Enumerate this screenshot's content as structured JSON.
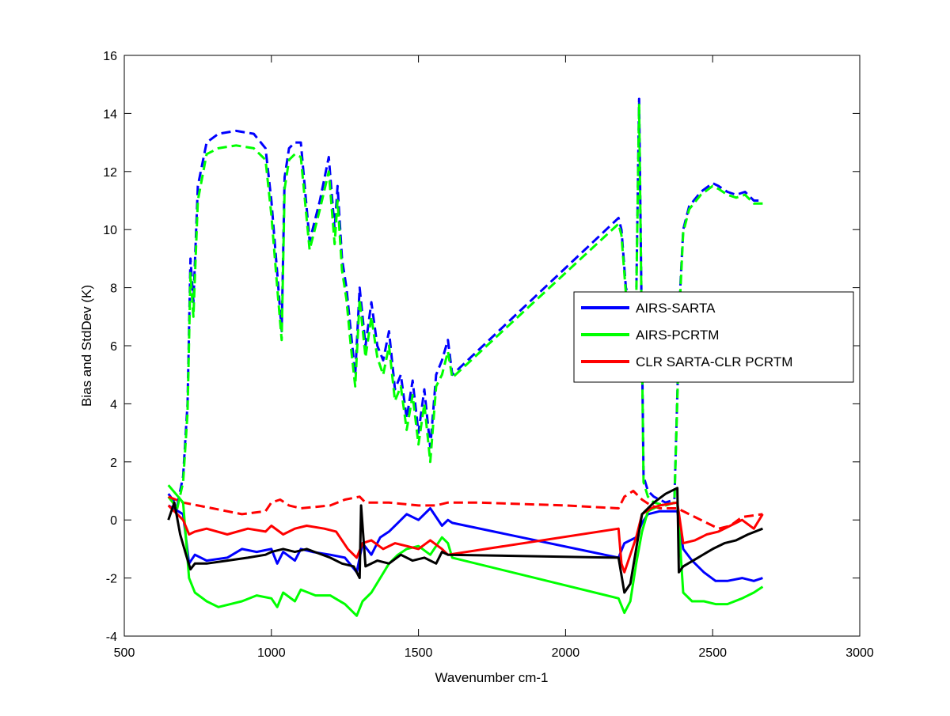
{
  "chart_data": {
    "type": "line",
    "title": "",
    "xlabel": "Wavenumber cm-1",
    "ylabel": "Bias and StdDev (K)",
    "xlim": [
      500,
      3000
    ],
    "ylim": [
      -4,
      16
    ],
    "xticks": [
      500,
      1000,
      1500,
      2000,
      2500,
      3000
    ],
    "yticks": [
      -4,
      -2,
      0,
      2,
      4,
      6,
      8,
      10,
      12,
      14,
      16
    ],
    "legend_position": "right",
    "series": [
      {
        "name": "AIRS-SARTA",
        "color": "#0000ff",
        "style": "dashed",
        "x": [
          650,
          680,
          700,
          715,
          725,
          735,
          750,
          780,
          820,
          880,
          940,
          980,
          1000,
          1020,
          1035,
          1045,
          1060,
          1080,
          1100,
          1130,
          1165,
          1195,
          1215,
          1225,
          1240,
          1255,
          1270,
          1285,
          1300,
          1320,
          1340,
          1360,
          1380,
          1400,
          1420,
          1440,
          1460,
          1480,
          1500,
          1520,
          1540,
          1560,
          1580,
          1600,
          1615,
          2180,
          2190,
          2205,
          2220,
          2240,
          2250,
          2265,
          2280,
          2300,
          2340,
          2370,
          2390,
          2400,
          2420,
          2460,
          2500,
          2520,
          2550,
          2580,
          2610,
          2640,
          2670
        ],
        "values": [
          0.9,
          0.5,
          1.5,
          4,
          9,
          7.5,
          11.5,
          13,
          13.3,
          13.4,
          13.3,
          12.8,
          11,
          8.5,
          6.5,
          11.8,
          12.8,
          13,
          13,
          9.6,
          11,
          12.5,
          10,
          11.5,
          9,
          8,
          6.5,
          5,
          8,
          6,
          7.5,
          6,
          5.5,
          6.5,
          4.5,
          5,
          3.5,
          4.8,
          3,
          4.5,
          2.5,
          5,
          5.5,
          6.2,
          5,
          10.4,
          10,
          8,
          7.5,
          7.5,
          14.5,
          1.5,
          1,
          0.8,
          0.6,
          0.7,
          8,
          10,
          10.8,
          11.3,
          11.6,
          11.5,
          11.3,
          11.2,
          11.3,
          11,
          11
        ],
        "linewidth": 3
      },
      {
        "name": "AIRS-PCRTM",
        "color": "#00ff00",
        "style": "dashed",
        "x": [
          650,
          680,
          700,
          715,
          725,
          735,
          750,
          780,
          820,
          880,
          940,
          980,
          1000,
          1020,
          1035,
          1045,
          1060,
          1080,
          1100,
          1130,
          1165,
          1195,
          1215,
          1225,
          1240,
          1255,
          1270,
          1285,
          1300,
          1320,
          1340,
          1360,
          1380,
          1400,
          1420,
          1440,
          1460,
          1480,
          1500,
          1520,
          1540,
          1560,
          1580,
          1600,
          1615,
          2180,
          2190,
          2205,
          2220,
          2240,
          2250,
          2265,
          2280,
          2300,
          2340,
          2370,
          2390,
          2400,
          2420,
          2460,
          2500,
          2520,
          2550,
          2580,
          2610,
          2640,
          2670
        ],
        "values": [
          0.8,
          0.4,
          1.3,
          3.7,
          8.5,
          7,
          11,
          12.6,
          12.8,
          12.9,
          12.8,
          12.4,
          10.5,
          8,
          6.2,
          11.4,
          12.4,
          12.6,
          12.5,
          9.3,
          10.7,
          12,
          9.5,
          11,
          8.6,
          7.6,
          6,
          4.6,
          7.6,
          5.6,
          7,
          5.6,
          5,
          6,
          4.1,
          4.6,
          3.1,
          4.3,
          2.6,
          4,
          2,
          4.6,
          5,
          5.8,
          4.9,
          10.2,
          9.8,
          7.8,
          7.4,
          7.4,
          14.3,
          1.3,
          0.8,
          0.6,
          0.5,
          0.6,
          7.8,
          9.9,
          10.7,
          11.2,
          11.5,
          11.4,
          11.2,
          11.1,
          11.2,
          10.9,
          10.9
        ],
        "linewidth": 3
      },
      {
        "name": "CLR SARTA-CLR PCRTM",
        "color": "#ff0000",
        "style": "dashed",
        "x": [
          650,
          700,
          750,
          800,
          900,
          980,
          1000,
          1030,
          1060,
          1100,
          1200,
          1250,
          1300,
          1320,
          1400,
          1500,
          1560,
          1600,
          1700,
          2000,
          2180,
          2200,
          2230,
          2260,
          2290,
          2320,
          2380,
          2420,
          2480,
          2520,
          2560,
          2600,
          2670
        ],
        "values": [
          0.8,
          0.6,
          0.5,
          0.4,
          0.2,
          0.3,
          0.6,
          0.7,
          0.5,
          0.4,
          0.5,
          0.7,
          0.8,
          0.6,
          0.6,
          0.5,
          0.5,
          0.6,
          0.6,
          0.5,
          0.4,
          0.8,
          1.0,
          0.7,
          0.5,
          0.4,
          0.4,
          0.2,
          -0.1,
          -0.3,
          -0.2,
          0.1,
          0.2
        ],
        "linewidth": 3
      },
      {
        "name": "",
        "color": "#0000ff",
        "style": "solid",
        "x": [
          650,
          700,
          720,
          740,
          780,
          850,
          900,
          950,
          1000,
          1020,
          1040,
          1080,
          1100,
          1140,
          1200,
          1250,
          1290,
          1310,
          1340,
          1370,
          1400,
          1430,
          1460,
          1500,
          1540,
          1580,
          1600,
          1615,
          2180,
          2200,
          2220,
          2240,
          2260,
          2280,
          2320,
          2380,
          2400,
          2430,
          2470,
          2510,
          2550,
          2600,
          2640,
          2670
        ],
        "values": [
          0.5,
          0.2,
          -1.5,
          -1.2,
          -1.4,
          -1.3,
          -1.0,
          -1.1,
          -1.0,
          -1.5,
          -1.1,
          -1.4,
          -1.0,
          -1.1,
          -1.2,
          -1.3,
          -1.8,
          -0.8,
          -1.2,
          -0.6,
          -0.4,
          -0.1,
          0.2,
          0.0,
          0.4,
          -0.2,
          0.0,
          -0.1,
          -1.3,
          -0.8,
          -0.7,
          -0.6,
          -0.1,
          0.2,
          0.3,
          0.3,
          -1.0,
          -1.4,
          -1.8,
          -2.1,
          -2.1,
          -2.0,
          -2.1,
          -2.0
        ],
        "linewidth": 3
      },
      {
        "name": "",
        "color": "#00ff00",
        "style": "solid",
        "x": [
          650,
          700,
          720,
          740,
          780,
          820,
          900,
          950,
          1000,
          1020,
          1040,
          1080,
          1100,
          1150,
          1200,
          1250,
          1290,
          1310,
          1340,
          1370,
          1400,
          1430,
          1460,
          1500,
          1540,
          1580,
          1600,
          1615,
          2180,
          2200,
          2220,
          2240,
          2260,
          2280,
          2320,
          2380,
          2400,
          2430,
          2470,
          2510,
          2550,
          2600,
          2640,
          2670
        ],
        "values": [
          1.2,
          0.6,
          -2.0,
          -2.5,
          -2.8,
          -3.0,
          -2.8,
          -2.6,
          -2.7,
          -3.0,
          -2.5,
          -2.8,
          -2.4,
          -2.6,
          -2.6,
          -2.9,
          -3.3,
          -2.8,
          -2.5,
          -2.0,
          -1.5,
          -1.2,
          -1.0,
          -0.9,
          -1.2,
          -0.6,
          -0.8,
          -1.3,
          -2.7,
          -3.2,
          -2.8,
          -1.5,
          -0.4,
          0.3,
          0.5,
          0.6,
          -2.5,
          -2.8,
          -2.8,
          -2.9,
          -2.9,
          -2.7,
          -2.5,
          -2.3
        ],
        "linewidth": 3
      },
      {
        "name": "",
        "color": "#ff0000",
        "style": "solid",
        "x": [
          650,
          680,
          700,
          720,
          740,
          780,
          850,
          920,
          980,
          1000,
          1040,
          1080,
          1120,
          1180,
          1220,
          1260,
          1290,
          1310,
          1340,
          1380,
          1420,
          1460,
          1500,
          1540,
          1580,
          1600,
          2180,
          2190,
          2200,
          2220,
          2240,
          2260,
          2290,
          2320,
          2380,
          2400,
          2440,
          2480,
          2520,
          2560,
          2600,
          2640,
          2670
        ],
        "values": [
          0.5,
          0.2,
          0.0,
          -0.5,
          -0.4,
          -0.3,
          -0.5,
          -0.3,
          -0.4,
          -0.2,
          -0.5,
          -0.3,
          -0.2,
          -0.3,
          -0.4,
          -1.0,
          -1.3,
          -0.8,
          -0.7,
          -1.0,
          -0.8,
          -0.9,
          -1.0,
          -0.7,
          -1.0,
          -1.2,
          -0.3,
          -1.5,
          -1.8,
          -1.2,
          -0.6,
          0.2,
          0.4,
          0.5,
          0.6,
          -0.8,
          -0.7,
          -0.5,
          -0.4,
          -0.2,
          0.0,
          -0.3,
          0.2
        ],
        "linewidth": 3
      },
      {
        "name": "",
        "color": "#000000",
        "style": "solid",
        "x": [
          650,
          670,
          690,
          710,
          725,
          740,
          780,
          850,
          920,
          980,
          1000,
          1040,
          1080,
          1120,
          1200,
          1240,
          1280,
          1300,
          1305,
          1320,
          1360,
          1400,
          1440,
          1480,
          1520,
          1560,
          1580,
          1600,
          2180,
          2200,
          2220,
          2240,
          2260,
          2300,
          2340,
          2380,
          2385,
          2400,
          2450,
          2500,
          2540,
          2580,
          2620,
          2670
        ],
        "values": [
          0.0,
          0.6,
          -0.5,
          -1.2,
          -1.7,
          -1.5,
          -1.5,
          -1.4,
          -1.3,
          -1.2,
          -1.1,
          -1.0,
          -1.1,
          -1.0,
          -1.3,
          -1.5,
          -1.6,
          -2.0,
          0.5,
          -1.6,
          -1.4,
          -1.5,
          -1.2,
          -1.4,
          -1.3,
          -1.5,
          -1.1,
          -1.2,
          -1.3,
          -2.5,
          -2.2,
          -1.0,
          0.2,
          0.6,
          0.9,
          1.1,
          -1.8,
          -1.6,
          -1.3,
          -1.0,
          -0.8,
          -0.7,
          -0.5,
          -0.3
        ],
        "linewidth": 3
      }
    ]
  }
}
